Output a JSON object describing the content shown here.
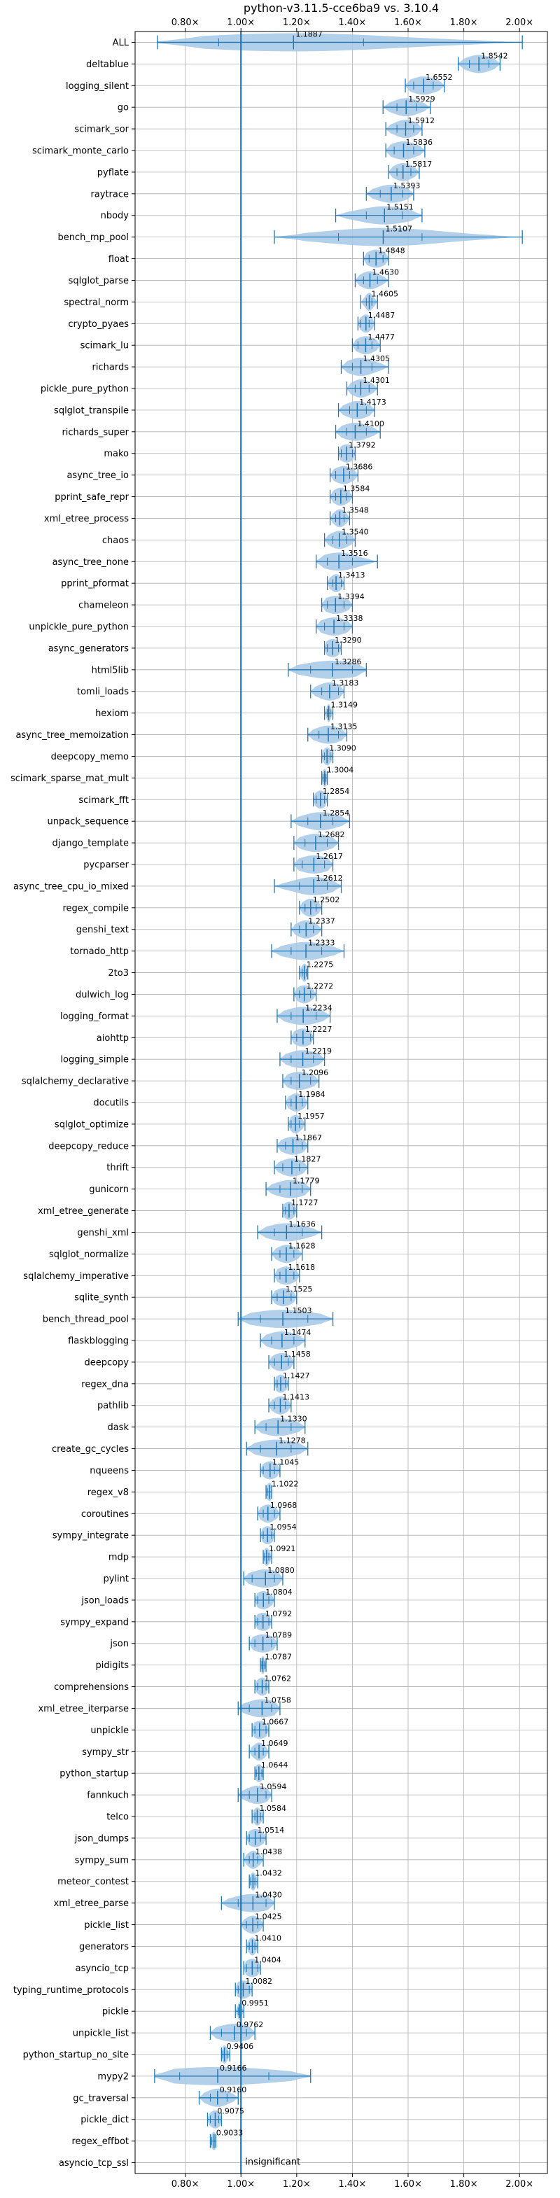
{
  "chart_data": {
    "type": "violin",
    "title": "python-v3.11.5-cce6ba9 vs. 3.10.4",
    "x_ticks": [
      "0.80×",
      "1.00×",
      "1.20×",
      "1.40×",
      "1.60×",
      "1.80×",
      "2.00×"
    ],
    "xlim": [
      0.62,
      2.1
    ],
    "baseline": 1.0,
    "grid": true,
    "baseline_annotation": "insignificant",
    "colors": {
      "accent": "#1f77b4",
      "violin": "#a6c8e6",
      "grid": "#b0b0b0"
    },
    "categories": [
      {
        "name": "ALL",
        "value": 1.1887,
        "lo": 0.7,
        "hi": 2.01,
        "q1": 0.92,
        "q3": 1.44,
        "label": "1.1887"
      },
      {
        "name": "deltablue",
        "value": 1.8542,
        "lo": 1.78,
        "hi": 1.93,
        "q1": 1.82,
        "q3": 1.89,
        "label": "1.8542"
      },
      {
        "name": "logging_silent",
        "value": 1.6552,
        "lo": 1.59,
        "hi": 1.73,
        "q1": 1.62,
        "q3": 1.69,
        "label": "1.6552"
      },
      {
        "name": "go",
        "value": 1.5929,
        "lo": 1.51,
        "hi": 1.68,
        "q1": 1.56,
        "q3": 1.63,
        "label": "1.5929"
      },
      {
        "name": "scimark_sor",
        "value": 1.5912,
        "lo": 1.52,
        "hi": 1.65,
        "q1": 1.56,
        "q3": 1.62,
        "label": "1.5912"
      },
      {
        "name": "scimark_monte_carlo",
        "value": 1.5836,
        "lo": 1.52,
        "hi": 1.66,
        "q1": 1.55,
        "q3": 1.62,
        "label": "1.5836"
      },
      {
        "name": "pyflate",
        "value": 1.5817,
        "lo": 1.53,
        "hi": 1.64,
        "q1": 1.56,
        "q3": 1.61,
        "label": "1.5817"
      },
      {
        "name": "raytrace",
        "value": 1.5393,
        "lo": 1.45,
        "hi": 1.62,
        "q1": 1.5,
        "q3": 1.58,
        "label": "1.5393"
      },
      {
        "name": "nbody",
        "value": 1.5151,
        "lo": 1.34,
        "hi": 1.65,
        "q1": 1.45,
        "q3": 1.58,
        "label": "1.5151"
      },
      {
        "name": "bench_mp_pool",
        "value": 1.5107,
        "lo": 1.12,
        "hi": 2.01,
        "q1": 1.35,
        "q3": 1.65,
        "label": "1.5107"
      },
      {
        "name": "float",
        "value": 1.4848,
        "lo": 1.44,
        "hi": 1.53,
        "q1": 1.46,
        "q3": 1.51,
        "label": "1.4848"
      },
      {
        "name": "sqlglot_parse",
        "value": 1.463,
        "lo": 1.41,
        "hi": 1.53,
        "q1": 1.44,
        "q3": 1.49,
        "label": "1.4630"
      },
      {
        "name": "spectral_norm",
        "value": 1.4605,
        "lo": 1.43,
        "hi": 1.49,
        "q1": 1.45,
        "q3": 1.47,
        "label": "1.4605"
      },
      {
        "name": "crypto_pyaes",
        "value": 1.4487,
        "lo": 1.42,
        "hi": 1.48,
        "q1": 1.43,
        "q3": 1.46,
        "label": "1.4487"
      },
      {
        "name": "scimark_lu",
        "value": 1.4477,
        "lo": 1.4,
        "hi": 1.5,
        "q1": 1.42,
        "q3": 1.47,
        "label": "1.4477"
      },
      {
        "name": "richards",
        "value": 1.4305,
        "lo": 1.36,
        "hi": 1.53,
        "q1": 1.4,
        "q3": 1.47,
        "label": "1.4305"
      },
      {
        "name": "pickle_pure_python",
        "value": 1.4301,
        "lo": 1.38,
        "hi": 1.49,
        "q1": 1.41,
        "q3": 1.46,
        "label": "1.4301"
      },
      {
        "name": "sqlglot_transpile",
        "value": 1.4173,
        "lo": 1.35,
        "hi": 1.48,
        "q1": 1.39,
        "q3": 1.45,
        "label": "1.4173"
      },
      {
        "name": "richards_super",
        "value": 1.41,
        "lo": 1.34,
        "hi": 1.5,
        "q1": 1.38,
        "q3": 1.45,
        "label": "1.4100"
      },
      {
        "name": "mako",
        "value": 1.3792,
        "lo": 1.35,
        "hi": 1.41,
        "q1": 1.36,
        "q3": 1.4,
        "label": "1.3792"
      },
      {
        "name": "async_tree_io",
        "value": 1.3686,
        "lo": 1.32,
        "hi": 1.42,
        "q1": 1.34,
        "q3": 1.39,
        "label": "1.3686"
      },
      {
        "name": "pprint_safe_repr",
        "value": 1.3584,
        "lo": 1.32,
        "hi": 1.4,
        "q1": 1.34,
        "q3": 1.38,
        "label": "1.3584"
      },
      {
        "name": "xml_etree_process",
        "value": 1.3548,
        "lo": 1.32,
        "hi": 1.39,
        "q1": 1.34,
        "q3": 1.37,
        "label": "1.3548"
      },
      {
        "name": "chaos",
        "value": 1.354,
        "lo": 1.3,
        "hi": 1.41,
        "q1": 1.33,
        "q3": 1.38,
        "label": "1.3540"
      },
      {
        "name": "async_tree_none",
        "value": 1.3516,
        "lo": 1.27,
        "hi": 1.49,
        "q1": 1.31,
        "q3": 1.4,
        "label": "1.3516"
      },
      {
        "name": "pprint_pformat",
        "value": 1.3413,
        "lo": 1.31,
        "hi": 1.37,
        "q1": 1.33,
        "q3": 1.36,
        "label": "1.3413"
      },
      {
        "name": "chameleon",
        "value": 1.3394,
        "lo": 1.29,
        "hi": 1.4,
        "q1": 1.31,
        "q3": 1.37,
        "label": "1.3394"
      },
      {
        "name": "unpickle_pure_python",
        "value": 1.3338,
        "lo": 1.27,
        "hi": 1.4,
        "q1": 1.3,
        "q3": 1.37,
        "label": "1.3338"
      },
      {
        "name": "async_generators",
        "value": 1.329,
        "lo": 1.3,
        "hi": 1.36,
        "q1": 1.31,
        "q3": 1.35,
        "label": "1.3290"
      },
      {
        "name": "html5lib",
        "value": 1.3286,
        "lo": 1.17,
        "hi": 1.45,
        "q1": 1.25,
        "q3": 1.4,
        "label": "1.3286"
      },
      {
        "name": "tomli_loads",
        "value": 1.3183,
        "lo": 1.25,
        "hi": 1.37,
        "q1": 1.29,
        "q3": 1.35,
        "label": "1.3183"
      },
      {
        "name": "hexiom",
        "value": 1.3149,
        "lo": 1.3,
        "hi": 1.33,
        "q1": 1.31,
        "q3": 1.32,
        "label": "1.3149"
      },
      {
        "name": "async_tree_memoization",
        "value": 1.3135,
        "lo": 1.24,
        "hi": 1.38,
        "q1": 1.28,
        "q3": 1.35,
        "label": "1.3135"
      },
      {
        "name": "deepcopy_memo",
        "value": 1.309,
        "lo": 1.29,
        "hi": 1.33,
        "q1": 1.3,
        "q3": 1.32,
        "label": "1.3090"
      },
      {
        "name": "scimark_sparse_mat_mult",
        "value": 1.3004,
        "lo": 1.29,
        "hi": 1.31,
        "q1": 1.295,
        "q3": 1.305,
        "label": "1.3004"
      },
      {
        "name": "scimark_fft",
        "value": 1.2854,
        "lo": 1.26,
        "hi": 1.31,
        "q1": 1.27,
        "q3": 1.3,
        "label": "1.2854"
      },
      {
        "name": "unpack_sequence",
        "value": 1.2854,
        "lo": 1.18,
        "hi": 1.39,
        "q1": 1.24,
        "q3": 1.33,
        "label": "1.2854"
      },
      {
        "name": "django_template",
        "value": 1.2682,
        "lo": 1.19,
        "hi": 1.35,
        "q1": 1.23,
        "q3": 1.31,
        "label": "1.2682"
      },
      {
        "name": "pycparser",
        "value": 1.2617,
        "lo": 1.19,
        "hi": 1.33,
        "q1": 1.22,
        "q3": 1.3,
        "label": "1.2617"
      },
      {
        "name": "async_tree_cpu_io_mixed",
        "value": 1.2612,
        "lo": 1.12,
        "hi": 1.36,
        "q1": 1.21,
        "q3": 1.31,
        "label": "1.2612"
      },
      {
        "name": "regex_compile",
        "value": 1.2502,
        "lo": 1.21,
        "hi": 1.29,
        "q1": 1.23,
        "q3": 1.27,
        "label": "1.2502"
      },
      {
        "name": "genshi_text",
        "value": 1.2337,
        "lo": 1.18,
        "hi": 1.29,
        "q1": 1.21,
        "q3": 1.26,
        "label": "1.2337"
      },
      {
        "name": "tornado_http",
        "value": 1.2333,
        "lo": 1.11,
        "hi": 1.37,
        "q1": 1.18,
        "q3": 1.29,
        "label": "1.2333"
      },
      {
        "name": "2to3",
        "value": 1.2275,
        "lo": 1.21,
        "hi": 1.24,
        "q1": 1.22,
        "q3": 1.235,
        "label": "1.2275"
      },
      {
        "name": "dulwich_log",
        "value": 1.2272,
        "lo": 1.19,
        "hi": 1.27,
        "q1": 1.21,
        "q3": 1.25,
        "label": "1.2272"
      },
      {
        "name": "logging_format",
        "value": 1.2234,
        "lo": 1.13,
        "hi": 1.32,
        "q1": 1.18,
        "q3": 1.27,
        "label": "1.2234"
      },
      {
        "name": "aiohttp",
        "value": 1.2227,
        "lo": 1.18,
        "hi": 1.26,
        "q1": 1.2,
        "q3": 1.25,
        "label": "1.2227"
      },
      {
        "name": "logging_simple",
        "value": 1.2219,
        "lo": 1.14,
        "hi": 1.3,
        "q1": 1.18,
        "q3": 1.26,
        "label": "1.2219"
      },
      {
        "name": "sqlalchemy_declarative",
        "value": 1.2096,
        "lo": 1.15,
        "hi": 1.28,
        "q1": 1.18,
        "q3": 1.25,
        "label": "1.2096"
      },
      {
        "name": "docutils",
        "value": 1.1984,
        "lo": 1.16,
        "hi": 1.24,
        "q1": 1.18,
        "q3": 1.22,
        "label": "1.1984"
      },
      {
        "name": "sqlglot_optimize",
        "value": 1.1957,
        "lo": 1.17,
        "hi": 1.23,
        "q1": 1.18,
        "q3": 1.21,
        "label": "1.1957"
      },
      {
        "name": "deepcopy_reduce",
        "value": 1.1867,
        "lo": 1.13,
        "hi": 1.24,
        "q1": 1.16,
        "q3": 1.22,
        "label": "1.1867"
      },
      {
        "name": "thrift",
        "value": 1.1827,
        "lo": 1.12,
        "hi": 1.24,
        "q1": 1.15,
        "q3": 1.21,
        "label": "1.1827"
      },
      {
        "name": "gunicorn",
        "value": 1.1779,
        "lo": 1.09,
        "hi": 1.25,
        "q1": 1.14,
        "q3": 1.22,
        "label": "1.1779"
      },
      {
        "name": "xml_etree_generate",
        "value": 1.1727,
        "lo": 1.15,
        "hi": 1.2,
        "q1": 1.16,
        "q3": 1.19,
        "label": "1.1727"
      },
      {
        "name": "genshi_xml",
        "value": 1.1636,
        "lo": 1.06,
        "hi": 1.29,
        "q1": 1.12,
        "q3": 1.22,
        "label": "1.1636"
      },
      {
        "name": "sqlglot_normalize",
        "value": 1.1628,
        "lo": 1.11,
        "hi": 1.22,
        "q1": 1.14,
        "q3": 1.19,
        "label": "1.1628"
      },
      {
        "name": "sqlalchemy_imperative",
        "value": 1.1618,
        "lo": 1.12,
        "hi": 1.21,
        "q1": 1.14,
        "q3": 1.19,
        "label": "1.1618"
      },
      {
        "name": "sqlite_synth",
        "value": 1.1525,
        "lo": 1.11,
        "hi": 1.2,
        "q1": 1.13,
        "q3": 1.18,
        "label": "1.1525"
      },
      {
        "name": "bench_thread_pool",
        "value": 1.1503,
        "lo": 0.99,
        "hi": 1.33,
        "q1": 1.07,
        "q3": 1.24,
        "label": "1.1503"
      },
      {
        "name": "flaskblogging",
        "value": 1.1474,
        "lo": 1.07,
        "hi": 1.23,
        "q1": 1.11,
        "q3": 1.19,
        "label": "1.1474"
      },
      {
        "name": "deepcopy",
        "value": 1.1458,
        "lo": 1.1,
        "hi": 1.19,
        "q1": 1.12,
        "q3": 1.17,
        "label": "1.1458"
      },
      {
        "name": "regex_dna",
        "value": 1.1427,
        "lo": 1.12,
        "hi": 1.17,
        "q1": 1.13,
        "q3": 1.16,
        "label": "1.1427"
      },
      {
        "name": "pathlib",
        "value": 1.1413,
        "lo": 1.1,
        "hi": 1.18,
        "q1": 1.12,
        "q3": 1.16,
        "label": "1.1413"
      },
      {
        "name": "dask",
        "value": 1.133,
        "lo": 1.05,
        "hi": 1.23,
        "q1": 1.09,
        "q3": 1.18,
        "label": "1.1330"
      },
      {
        "name": "create_gc_cycles",
        "value": 1.1278,
        "lo": 1.02,
        "hi": 1.24,
        "q1": 1.07,
        "q3": 1.18,
        "label": "1.1278"
      },
      {
        "name": "nqueens",
        "value": 1.1045,
        "lo": 1.07,
        "hi": 1.14,
        "q1": 1.08,
        "q3": 1.12,
        "label": "1.1045"
      },
      {
        "name": "regex_v8",
        "value": 1.1022,
        "lo": 1.09,
        "hi": 1.11,
        "q1": 1.095,
        "q3": 1.11,
        "label": "1.1022"
      },
      {
        "name": "coroutines",
        "value": 1.0968,
        "lo": 1.06,
        "hi": 1.14,
        "q1": 1.08,
        "q3": 1.12,
        "label": "1.0968"
      },
      {
        "name": "sympy_integrate",
        "value": 1.0954,
        "lo": 1.07,
        "hi": 1.12,
        "q1": 1.08,
        "q3": 1.11,
        "label": "1.0954"
      },
      {
        "name": "mdp",
        "value": 1.0921,
        "lo": 1.08,
        "hi": 1.11,
        "q1": 1.085,
        "q3": 1.1,
        "label": "1.0921"
      },
      {
        "name": "pylint",
        "value": 1.088,
        "lo": 1.01,
        "hi": 1.15,
        "q1": 1.04,
        "q3": 1.12,
        "label": "1.0880"
      },
      {
        "name": "json_loads",
        "value": 1.0804,
        "lo": 1.05,
        "hi": 1.12,
        "q1": 1.06,
        "q3": 1.1,
        "label": "1.0804"
      },
      {
        "name": "sympy_expand",
        "value": 1.0792,
        "lo": 1.05,
        "hi": 1.11,
        "q1": 1.06,
        "q3": 1.1,
        "label": "1.0792"
      },
      {
        "name": "json",
        "value": 1.0789,
        "lo": 1.03,
        "hi": 1.13,
        "q1": 1.05,
        "q3": 1.11,
        "label": "1.0789"
      },
      {
        "name": "pidigits",
        "value": 1.0787,
        "lo": 1.07,
        "hi": 1.09,
        "q1": 1.075,
        "q3": 1.085,
        "label": "1.0787"
      },
      {
        "name": "comprehensions",
        "value": 1.0762,
        "lo": 1.05,
        "hi": 1.1,
        "q1": 1.06,
        "q3": 1.09,
        "label": "1.0762"
      },
      {
        "name": "xml_etree_iterparse",
        "value": 1.0758,
        "lo": 0.99,
        "hi": 1.14,
        "q1": 1.03,
        "q3": 1.11,
        "label": "1.0758"
      },
      {
        "name": "unpickle",
        "value": 1.0667,
        "lo": 1.04,
        "hi": 1.1,
        "q1": 1.05,
        "q3": 1.09,
        "label": "1.0667"
      },
      {
        "name": "sympy_str",
        "value": 1.0649,
        "lo": 1.03,
        "hi": 1.1,
        "q1": 1.05,
        "q3": 1.08,
        "label": "1.0649"
      },
      {
        "name": "python_startup",
        "value": 1.0644,
        "lo": 1.05,
        "hi": 1.08,
        "q1": 1.055,
        "q3": 1.075,
        "label": "1.0644"
      },
      {
        "name": "fannkuch",
        "value": 1.0594,
        "lo": 0.99,
        "hi": 1.11,
        "q1": 1.03,
        "q3": 1.09,
        "label": "1.0594"
      },
      {
        "name": "telco",
        "value": 1.0584,
        "lo": 1.04,
        "hi": 1.08,
        "q1": 1.05,
        "q3": 1.07,
        "label": "1.0584"
      },
      {
        "name": "json_dumps",
        "value": 1.0514,
        "lo": 1.02,
        "hi": 1.09,
        "q1": 1.03,
        "q3": 1.07,
        "label": "1.0514"
      },
      {
        "name": "sympy_sum",
        "value": 1.0438,
        "lo": 1.01,
        "hi": 1.08,
        "q1": 1.03,
        "q3": 1.06,
        "label": "1.0438"
      },
      {
        "name": "meteor_contest",
        "value": 1.0432,
        "lo": 1.03,
        "hi": 1.06,
        "q1": 1.035,
        "q3": 1.05,
        "label": "1.0432"
      },
      {
        "name": "xml_etree_parse",
        "value": 1.043,
        "lo": 0.93,
        "hi": 1.12,
        "q1": 0.99,
        "q3": 1.09,
        "label": "1.0430"
      },
      {
        "name": "pickle_list",
        "value": 1.0425,
        "lo": 1.0,
        "hi": 1.08,
        "q1": 1.02,
        "q3": 1.06,
        "label": "1.0425"
      },
      {
        "name": "generators",
        "value": 1.041,
        "lo": 1.02,
        "hi": 1.06,
        "q1": 1.03,
        "q3": 1.05,
        "label": "1.0410"
      },
      {
        "name": "asyncio_tcp",
        "value": 1.0404,
        "lo": 1.01,
        "hi": 1.07,
        "q1": 1.02,
        "q3": 1.06,
        "label": "1.0404"
      },
      {
        "name": "typing_runtime_protocols",
        "value": 1.0082,
        "lo": 0.98,
        "hi": 1.04,
        "q1": 0.99,
        "q3": 1.03,
        "label": "1.0082"
      },
      {
        "name": "pickle",
        "value": 0.9951,
        "lo": 0.98,
        "hi": 1.01,
        "q1": 0.99,
        "q3": 1.0,
        "label": "0.9951"
      },
      {
        "name": "unpickle_list",
        "value": 0.9762,
        "lo": 0.89,
        "hi": 1.05,
        "q1": 0.93,
        "q3": 1.02,
        "label": "0.9762"
      },
      {
        "name": "python_startup_no_site",
        "value": 0.9406,
        "lo": 0.93,
        "hi": 0.96,
        "q1": 0.935,
        "q3": 0.95,
        "label": "0.9406"
      },
      {
        "name": "mypy2",
        "value": 0.9166,
        "lo": 0.69,
        "hi": 1.25,
        "q1": 0.78,
        "q3": 1.1,
        "label": "0.9166"
      },
      {
        "name": "gc_traversal",
        "value": 0.916,
        "lo": 0.85,
        "hi": 0.99,
        "q1": 0.89,
        "q3": 0.95,
        "label": "0.9160"
      },
      {
        "name": "pickle_dict",
        "value": 0.9075,
        "lo": 0.88,
        "hi": 0.93,
        "q1": 0.89,
        "q3": 0.92,
        "label": "0.9075"
      },
      {
        "name": "regex_effbot",
        "value": 0.9033,
        "lo": 0.89,
        "hi": 0.91,
        "q1": 0.895,
        "q3": 0.91,
        "label": "0.9033"
      },
      {
        "name": "asyncio_tcp_ssl",
        "value": null,
        "lo": null,
        "hi": null,
        "q1": null,
        "q3": null,
        "label": ""
      }
    ]
  }
}
